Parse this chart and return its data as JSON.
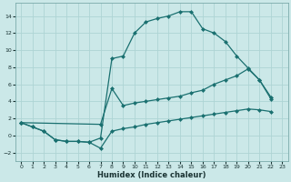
{
  "xlabel": "Humidex (Indice chaleur)",
  "bg_color": "#cbe8e8",
  "grid_color": "#aed4d4",
  "line_color": "#1a7070",
  "line1_x": [
    0,
    1,
    2,
    3,
    4,
    5,
    6,
    7,
    8,
    9,
    10,
    11,
    12,
    13,
    14,
    15,
    16,
    17,
    18,
    19,
    20,
    21,
    22
  ],
  "line1_y": [
    1.5,
    1.0,
    0.5,
    -0.5,
    -0.7,
    -0.7,
    -0.8,
    -0.3,
    9.0,
    9.3,
    12.0,
    13.3,
    13.7,
    14.0,
    14.5,
    14.5,
    12.5,
    12.0,
    11.0,
    9.3,
    7.9,
    6.5,
    4.3
  ],
  "line2_x": [
    0,
    7,
    8,
    9,
    10,
    11,
    12,
    13,
    14,
    15,
    16,
    17,
    18,
    19,
    20,
    21,
    22
  ],
  "line2_y": [
    1.5,
    1.3,
    5.5,
    3.5,
    3.8,
    4.0,
    4.2,
    4.4,
    4.6,
    5.0,
    5.3,
    6.0,
    6.5,
    7.0,
    7.8,
    6.5,
    4.5
  ],
  "line3_x": [
    0,
    1,
    2,
    3,
    4,
    5,
    6,
    7,
    8,
    9,
    10,
    11,
    12,
    13,
    14,
    15,
    16,
    17,
    18,
    19,
    20,
    21,
    22
  ],
  "line3_y": [
    1.5,
    1.0,
    0.5,
    -0.5,
    -0.7,
    -0.7,
    -0.8,
    -1.5,
    0.5,
    0.8,
    1.0,
    1.3,
    1.5,
    1.7,
    1.9,
    2.1,
    2.3,
    2.5,
    2.7,
    2.9,
    3.1,
    3.0,
    2.8
  ],
  "ylim": [
    -3,
    15.5
  ],
  "xlim": [
    -0.5,
    23.5
  ],
  "yticks": [
    -2,
    0,
    2,
    4,
    6,
    8,
    10,
    12,
    14
  ],
  "xticks": [
    0,
    1,
    2,
    3,
    4,
    5,
    6,
    7,
    8,
    9,
    10,
    11,
    12,
    13,
    14,
    15,
    16,
    17,
    18,
    19,
    20,
    21,
    22,
    23
  ]
}
